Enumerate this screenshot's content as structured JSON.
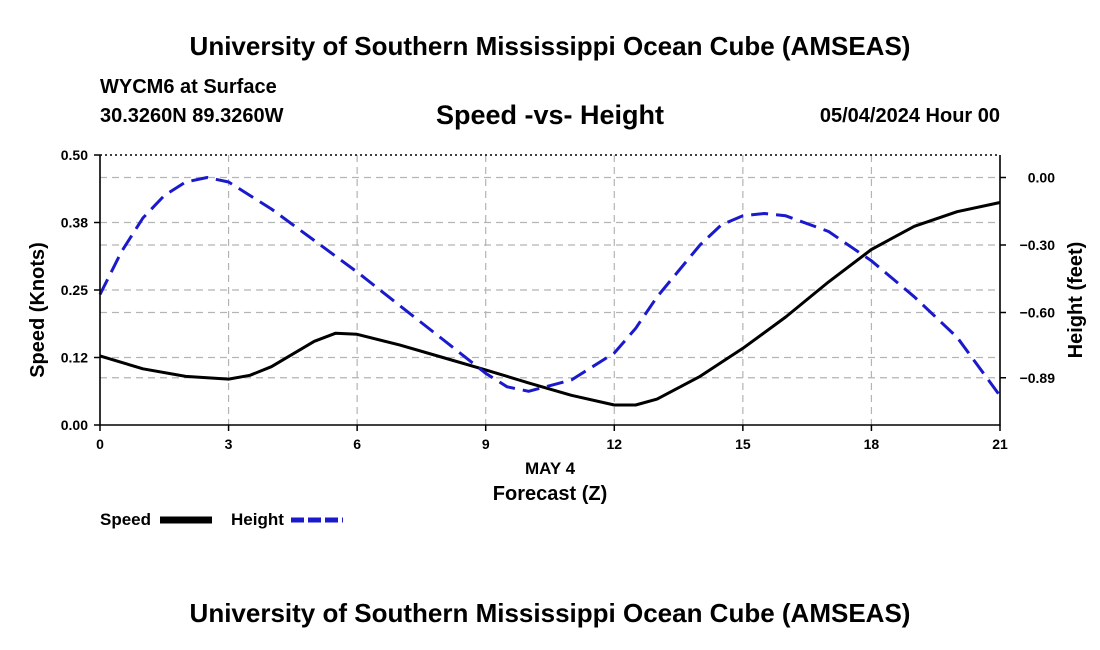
{
  "page": {
    "title_top": "University of Southern Mississippi Ocean Cube (AMSEAS)",
    "title_bottom": "University of Southern Mississippi Ocean Cube (AMSEAS)",
    "station": "WYCM6 at Surface",
    "coords": "30.3260N  89.3260W",
    "subtitle": "Speed -vs- Height",
    "datetime": "05/04/2024 Hour 00"
  },
  "chart_data": {
    "type": "line",
    "title": "Speed -vs- Height",
    "xlabel": "Forecast (Z)",
    "xdate": "MAY 4",
    "ylabel": "Speed (Knots)",
    "y2label": "Height (feet)",
    "xlim": [
      0,
      21
    ],
    "ylim": [
      0,
      0.5
    ],
    "y2lim": [
      -1.1,
      0.1
    ],
    "xticks": [
      0,
      3,
      6,
      9,
      12,
      15,
      18,
      21
    ],
    "yticks": [
      0.0,
      0.125,
      0.25,
      0.375,
      0.5
    ],
    "yticklabels": [
      "0.00",
      "0.12",
      "0.25",
      "0.38",
      "0.50"
    ],
    "y2ticks": [
      0.0,
      -0.3,
      -0.6,
      -0.89
    ],
    "y2ticklabels": [
      "0.00",
      "−0.30",
      "−0.60",
      "−0.89"
    ],
    "grid": true,
    "colors": {
      "speed": "#000000",
      "height": "#1a1acc",
      "grid": "#b4b4b4"
    },
    "series": [
      {
        "name": "Speed",
        "axis": "left",
        "style": "solid",
        "x": [
          0,
          1,
          2,
          3,
          3.5,
          4,
          5,
          5.5,
          6,
          7,
          8,
          9,
          10,
          11,
          12,
          12.5,
          13,
          14,
          15,
          16,
          17,
          18,
          19,
          20,
          21
        ],
        "values": [
          0.128,
          0.104,
          0.09,
          0.085,
          0.092,
          0.108,
          0.155,
          0.17,
          0.168,
          0.148,
          0.125,
          0.102,
          0.078,
          0.055,
          0.037,
          0.037,
          0.048,
          0.09,
          0.142,
          0.2,
          0.265,
          0.325,
          0.368,
          0.395,
          0.412
        ]
      },
      {
        "name": "Height",
        "axis": "right",
        "style": "dashed",
        "x": [
          0,
          0.5,
          1,
          1.5,
          2,
          2.5,
          3,
          4,
          5,
          6,
          7,
          8,
          9,
          9.5,
          10,
          11,
          12,
          12.5,
          13,
          14,
          14.5,
          15,
          15.5,
          16,
          17,
          18,
          19,
          20,
          21
        ],
        "values": [
          -0.52,
          -0.33,
          -0.18,
          -0.08,
          -0.02,
          0.0,
          -0.02,
          -0.14,
          -0.28,
          -0.42,
          -0.57,
          -0.72,
          -0.87,
          -0.93,
          -0.95,
          -0.9,
          -0.78,
          -0.67,
          -0.53,
          -0.3,
          -0.21,
          -0.17,
          -0.16,
          -0.17,
          -0.24,
          -0.37,
          -0.53,
          -0.71,
          -0.97
        ]
      }
    ],
    "legend": [
      {
        "label": "Speed",
        "style": "solid"
      },
      {
        "label": "Height",
        "style": "dashed"
      }
    ],
    "legend_position": "bottom-left"
  }
}
